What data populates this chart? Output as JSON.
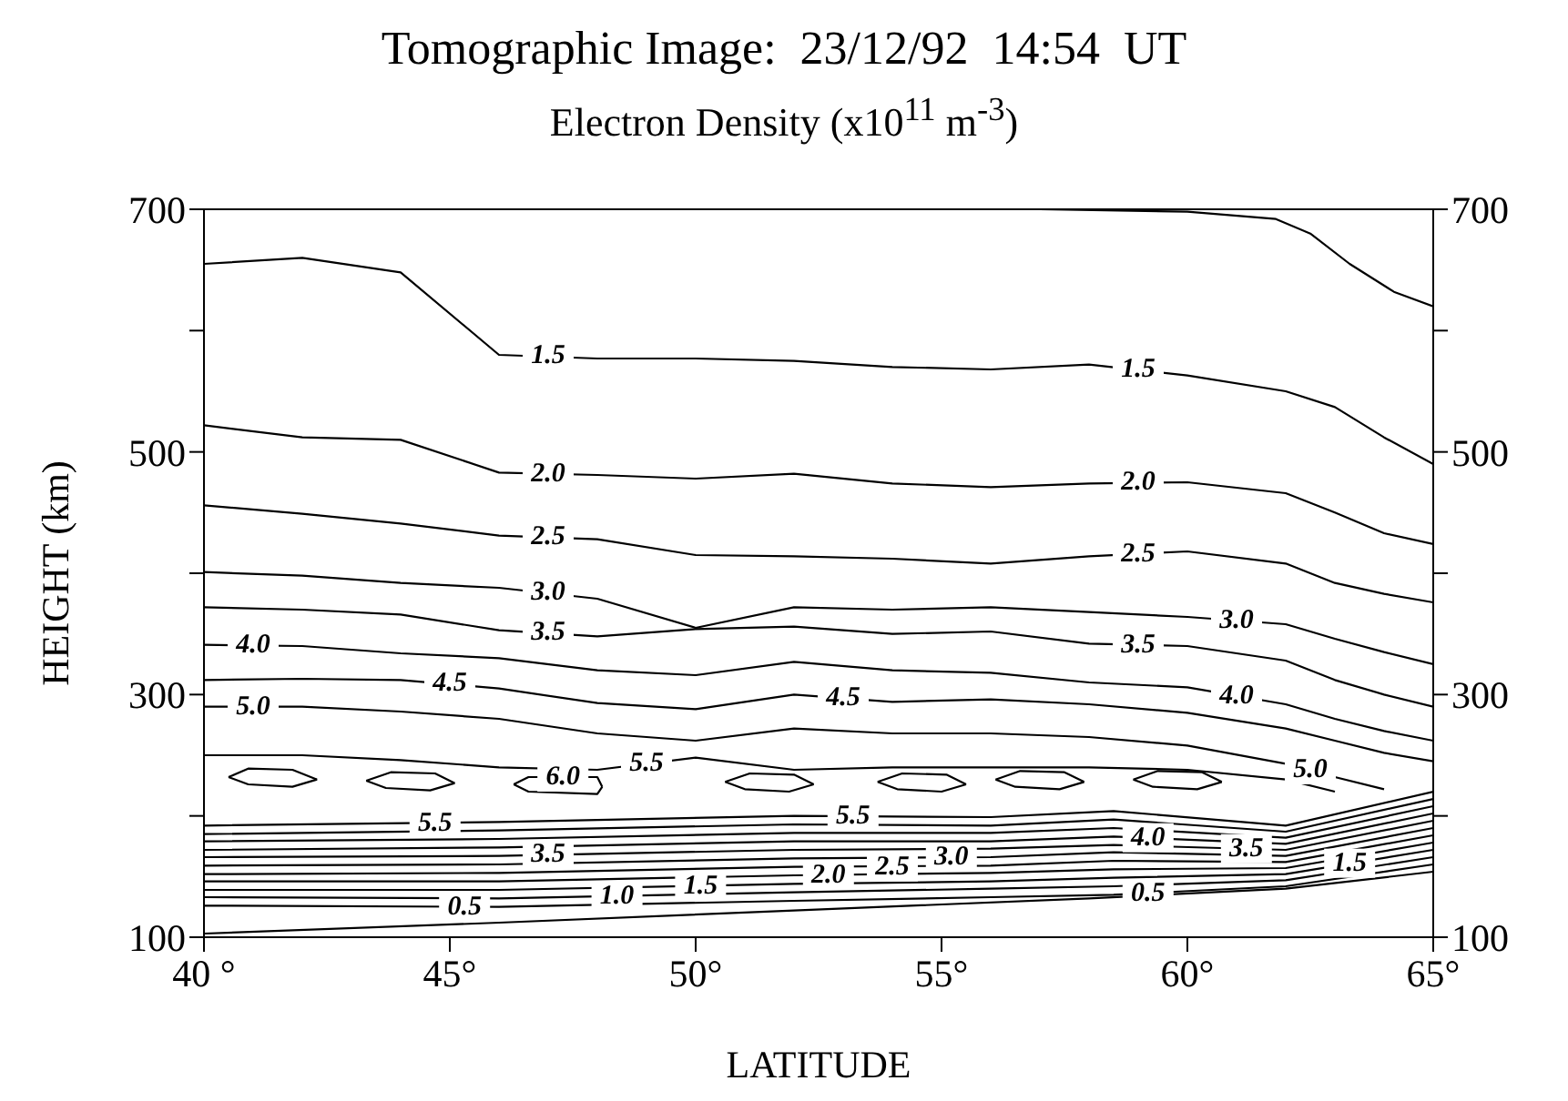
{
  "chart_data": {
    "type": "line",
    "title": "Tomographic Image:  23/12/92  14:54  UT",
    "subtitle": "Electron Density (x10$^{11}$ m$^{-3}$)",
    "xlabel": "LATITUDE",
    "ylabel": "HEIGHT  (km)",
    "xlim": [
      40,
      65
    ],
    "xticks": [
      {
        "value": 40,
        "label": "40 °"
      },
      {
        "value": 45,
        "label": "45°"
      },
      {
        "value": 50,
        "label": "50°"
      },
      {
        "value": 55,
        "label": "55°"
      },
      {
        "value": 60,
        "label": "60°"
      },
      {
        "value": 65,
        "label": "65°"
      }
    ],
    "ylim": [
      100,
      700
    ],
    "yticks": [
      100,
      {
        "value": 200,
        "label": null
      },
      300,
      {
        "value": 400,
        "label": null
      },
      500,
      {
        "value": 600,
        "label": null
      },
      700
    ],
    "y2lim": [
      100,
      700
    ],
    "y2ticks": [
      100,
      {
        "value": 200,
        "label": null
      },
      300,
      {
        "value": 400,
        "label": null
      },
      500,
      {
        "value": 600,
        "label": null
      },
      700
    ],
    "grid": false,
    "series": [
      {
        "type": "line",
        "color": "#000000",
        "x": [
          57,
          60,
          61.8,
          62.5,
          63.3,
          64.2,
          65
        ],
        "values": [
          700,
          698,
          692,
          680,
          655,
          632,
          620
        ]
      },
      {
        "type": "line",
        "color": "#000000",
        "x": [
          40,
          42,
          44,
          46,
          48,
          50,
          52,
          54,
          56,
          58,
          60,
          62,
          63,
          64,
          65
        ],
        "values": [
          655,
          660,
          648,
          580,
          577,
          577,
          575,
          570,
          568,
          572,
          563,
          550,
          537,
          512,
          490
        ]
      },
      {
        "type": "line",
        "color": "#000000",
        "x": [
          40,
          42,
          44,
          46,
          48,
          50,
          52,
          54,
          56,
          58,
          60,
          62,
          63,
          64,
          65
        ],
        "values": [
          522,
          512,
          510,
          483,
          481,
          478,
          482,
          474,
          471,
          474,
          475,
          466,
          450,
          433,
          424
        ]
      },
      {
        "type": "line",
        "color": "#000000",
        "x": [
          40,
          42,
          44,
          46,
          48,
          50,
          52,
          54,
          56,
          58,
          60,
          62,
          63,
          64,
          65
        ],
        "values": [
          456,
          449,
          441,
          431,
          428,
          415,
          414,
          412,
          408,
          414,
          418,
          408,
          392,
          383,
          376
        ]
      },
      {
        "type": "line",
        "color": "#000000",
        "x": [
          40,
          42,
          44,
          46,
          48,
          50,
          52,
          54,
          56,
          58,
          60,
          62,
          63,
          64,
          65
        ],
        "values": [
          401,
          398,
          392,
          388,
          379,
          355,
          372,
          370,
          372,
          368,
          364,
          358,
          346,
          335,
          325
        ]
      },
      {
        "type": "line",
        "color": "#000000",
        "x": [
          40,
          42,
          44,
          46,
          48,
          50,
          52,
          54,
          56,
          58,
          60,
          62,
          63,
          64,
          65
        ],
        "values": [
          372,
          370,
          366,
          353,
          348,
          354,
          356,
          350,
          352,
          342,
          340,
          328,
          312,
          300,
          290
        ]
      },
      {
        "type": "line",
        "color": "#000000",
        "x": [
          40,
          42,
          44,
          46,
          48,
          50,
          52,
          54,
          56,
          58,
          60,
          62,
          63,
          64,
          65
        ],
        "values": [
          341,
          340,
          334,
          330,
          320,
          316,
          327,
          320,
          318,
          310,
          306,
          292,
          280,
          270,
          262
        ]
      },
      {
        "type": "line",
        "color": "#000000",
        "x": [
          40,
          42,
          44,
          46,
          48,
          50,
          52,
          54,
          56,
          58,
          60,
          62,
          63,
          64,
          65
        ],
        "values": [
          312,
          313,
          312,
          305,
          293,
          288,
          300,
          294,
          296,
          292,
          285,
          272,
          262,
          252,
          245
        ]
      },
      {
        "type": "line",
        "color": "#000000",
        "x": [
          40,
          42,
          44,
          46,
          48,
          50,
          52,
          54,
          56,
          58,
          60,
          62,
          63,
          64
        ],
        "values": [
          290,
          290,
          286,
          280,
          268,
          262,
          272,
          268,
          268,
          265,
          258,
          243,
          232,
          222
        ]
      },
      {
        "type": "line",
        "color": "#000000",
        "x": [
          40,
          42,
          44,
          46,
          48,
          50,
          52,
          54,
          56,
          58,
          60,
          62,
          63
        ],
        "values": [
          250,
          250,
          246,
          240,
          238,
          248,
          238,
          240,
          240,
          240,
          238,
          230,
          220
        ]
      },
      {
        "type": "line",
        "color": "#000000",
        "x": [
          40.5,
          40.9,
          41.8,
          42.3
        ],
        "values": [
          232,
          239,
          238,
          230
        ]
      },
      {
        "type": "line",
        "color": "#000000",
        "x": [
          40.5,
          40.9,
          41.8,
          42.3
        ],
        "values": [
          232,
          226,
          224,
          230
        ]
      },
      {
        "type": "line",
        "color": "#000000",
        "x": [
          43.3,
          43.8,
          44.7,
          45.1
        ],
        "values": [
          229,
          236,
          235,
          227
        ]
      },
      {
        "type": "line",
        "color": "#000000",
        "x": [
          43.3,
          43.7,
          44.6,
          45.1
        ],
        "values": [
          229,
          223,
          221,
          227
        ]
      },
      {
        "type": "line",
        "color": "#000000",
        "x": [
          46.3,
          46.6,
          48,
          48.1
        ],
        "values": [
          226,
          232,
          232,
          224
        ]
      },
      {
        "type": "line",
        "color": "#000000",
        "x": [
          46.3,
          46.6,
          48,
          48.1
        ],
        "values": [
          226,
          220,
          218,
          224
        ]
      },
      {
        "type": "line",
        "color": "#000000",
        "x": [
          50.6,
          51.1,
          52,
          52.4
        ],
        "values": [
          228,
          235,
          234,
          226
        ]
      },
      {
        "type": "line",
        "color": "#000000",
        "x": [
          50.6,
          51,
          51.9,
          52.4
        ],
        "values": [
          228,
          222,
          220,
          226
        ]
      },
      {
        "type": "line",
        "color": "#000000",
        "x": [
          53.7,
          54.2,
          55.1,
          55.5
        ],
        "values": [
          228,
          235,
          234,
          226
        ]
      },
      {
        "type": "line",
        "color": "#000000",
        "x": [
          53.7,
          54.1,
          55,
          55.5
        ],
        "values": [
          228,
          222,
          220,
          226
        ]
      },
      {
        "type": "line",
        "color": "#000000",
        "x": [
          56.1,
          56.6,
          57.5,
          57.9
        ],
        "values": [
          230,
          237,
          236,
          228
        ]
      },
      {
        "type": "line",
        "color": "#000000",
        "x": [
          56.1,
          56.5,
          57.4,
          57.9
        ],
        "values": [
          230,
          224,
          222,
          228
        ]
      },
      {
        "type": "line",
        "color": "#000000",
        "x": [
          58.9,
          59.4,
          60.3,
          60.7
        ],
        "values": [
          230,
          237,
          236,
          228
        ]
      },
      {
        "type": "line",
        "color": "#000000",
        "x": [
          58.9,
          59.3,
          60.2,
          60.7
        ],
        "values": [
          230,
          224,
          222,
          228
        ]
      },
      {
        "type": "line",
        "color": "#000000",
        "x": [
          40,
          46,
          52,
          56,
          58.5,
          62,
          65
        ],
        "values": [
          192,
          195,
          200,
          199,
          204,
          192,
          220
        ]
      },
      {
        "type": "line",
        "color": "#000000",
        "x": [
          40,
          46,
          52,
          56,
          58.5,
          62,
          65
        ],
        "values": [
          185,
          188,
          193,
          192,
          197,
          187,
          214
        ]
      },
      {
        "type": "line",
        "color": "#000000",
        "x": [
          40,
          46,
          52,
          56,
          58.5,
          62,
          65
        ],
        "values": [
          179,
          181,
          186,
          186,
          190,
          182,
          208
        ]
      },
      {
        "type": "line",
        "color": "#000000",
        "x": [
          40,
          46,
          52,
          56,
          58.5,
          62,
          65
        ],
        "values": [
          172,
          174,
          179,
          179,
          183,
          177,
          202
        ]
      },
      {
        "type": "line",
        "color": "#000000",
        "x": [
          40,
          46,
          52,
          56,
          58.5,
          62,
          65
        ],
        "values": [
          166,
          167,
          172,
          173,
          176,
          172,
          196
        ]
      },
      {
        "type": "line",
        "color": "#000000",
        "x": [
          40,
          46,
          52,
          56,
          58.5,
          62,
          65
        ],
        "values": [
          159,
          160,
          165,
          166,
          170,
          167,
          190
        ]
      },
      {
        "type": "line",
        "color": "#000000",
        "x": [
          40,
          46,
          52,
          56,
          58.5,
          62,
          65
        ],
        "values": [
          152,
          153,
          158,
          159,
          163,
          162,
          184
        ]
      },
      {
        "type": "line",
        "color": "#000000",
        "x": [
          40,
          46,
          52,
          56,
          58.5,
          62,
          65
        ],
        "values": [
          146,
          146,
          151,
          153,
          156,
          157,
          178
        ]
      },
      {
        "type": "line",
        "color": "#000000",
        "x": [
          40,
          46,
          52,
          56,
          58.5,
          62,
          65
        ],
        "values": [
          139,
          139,
          144,
          146,
          149,
          152,
          172
        ]
      },
      {
        "type": "line",
        "color": "#000000",
        "x": [
          40,
          46,
          52,
          56,
          58.5,
          62,
          65
        ],
        "values": [
          133,
          132,
          137,
          140,
          142,
          147,
          166
        ]
      },
      {
        "type": "line",
        "color": "#000000",
        "x": [
          40,
          46,
          52,
          56,
          58.5,
          62,
          65
        ],
        "values": [
          126,
          125,
          130,
          133,
          135,
          142,
          160
        ]
      },
      {
        "type": "line",
        "color": "#000000",
        "x": [
          40,
          46,
          52,
          58,
          62,
          65
        ],
        "values": [
          103,
          112,
          122,
          132,
          140,
          154
        ]
      }
    ],
    "annotations": [
      {
        "text": "1.5",
        "x": 47,
        "y": 579
      },
      {
        "text": "1.5",
        "x": 59,
        "y": 568
      },
      {
        "text": "2.0",
        "x": 47,
        "y": 482
      },
      {
        "text": "2.0",
        "x": 59,
        "y": 475
      },
      {
        "text": "2.5",
        "x": 47,
        "y": 430
      },
      {
        "text": "2.5",
        "x": 59,
        "y": 416
      },
      {
        "text": "3.0",
        "x": 47,
        "y": 384
      },
      {
        "text": "3.0",
        "x": 61,
        "y": 361
      },
      {
        "text": "3.5",
        "x": 47,
        "y": 351
      },
      {
        "text": "3.5",
        "x": 59,
        "y": 341
      },
      {
        "text": "4.0",
        "x": 41,
        "y": 341
      },
      {
        "text": "4.0",
        "x": 61,
        "y": 299
      },
      {
        "text": "4.5",
        "x": 45,
        "y": 309
      },
      {
        "text": "4.5",
        "x": 53,
        "y": 297
      },
      {
        "text": "5.0",
        "x": 41,
        "y": 290
      },
      {
        "text": "5.0",
        "x": 62.5,
        "y": 238
      },
      {
        "text": "5.5",
        "x": 49,
        "y": 243
      },
      {
        "text": "6.0",
        "x": 47.3,
        "y": 232
      },
      {
        "text": "5.5",
        "x": 44.7,
        "y": 194
      },
      {
        "text": "5.5",
        "x": 53.2,
        "y": 200
      },
      {
        "text": "3.5",
        "x": 47,
        "y": 168
      },
      {
        "text": "4.0",
        "x": 59.2,
        "y": 182
      },
      {
        "text": "3.5",
        "x": 61.2,
        "y": 173
      },
      {
        "text": "0.5",
        "x": 45.3,
        "y": 125
      },
      {
        "text": "0.5",
        "x": 59.2,
        "y": 136
      },
      {
        "text": "1.0",
        "x": 48.4,
        "y": 134
      },
      {
        "text": "1.5",
        "x": 50.1,
        "y": 142
      },
      {
        "text": "2.0",
        "x": 52.7,
        "y": 151
      },
      {
        "text": "2.5",
        "x": 54,
        "y": 158
      },
      {
        "text": "3.0",
        "x": 55.2,
        "y": 166
      },
      {
        "text": "1.5",
        "x": 63.3,
        "y": 161
      }
    ]
  }
}
